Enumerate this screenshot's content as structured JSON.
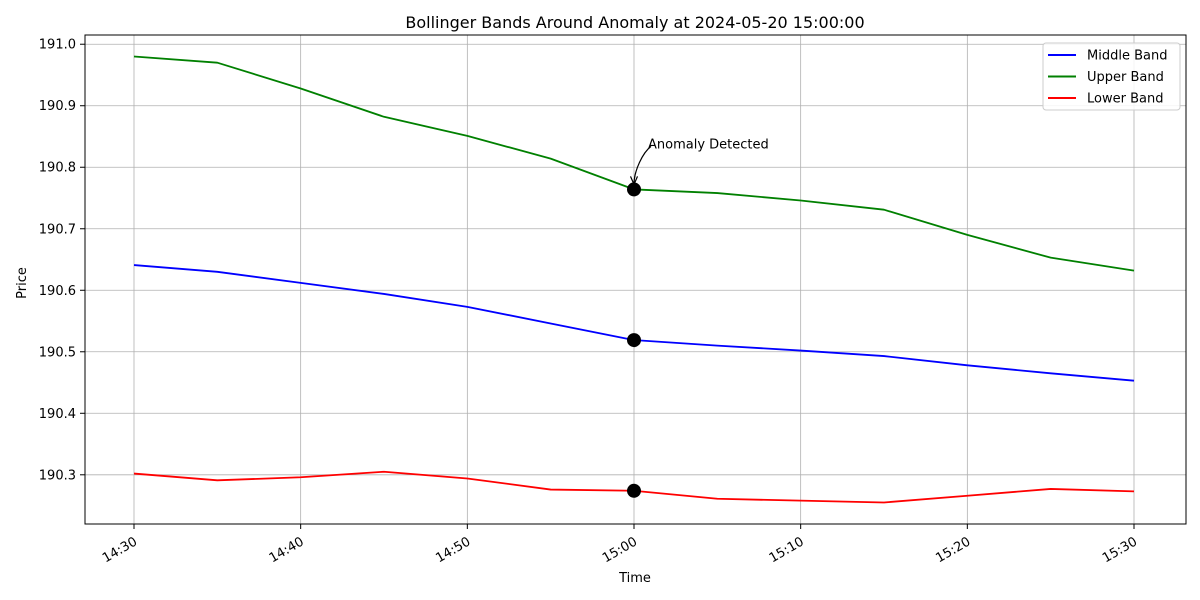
{
  "chart_data": {
    "type": "line",
    "title": "Bollinger Bands Around Anomaly at 2024-05-20 15:00:00",
    "xlabel": "Time",
    "ylabel": "Price",
    "x": [
      "14:30",
      "14:35",
      "14:40",
      "14:45",
      "14:50",
      "14:55",
      "15:00",
      "15:05",
      "15:10",
      "15:15",
      "15:20",
      "15:25",
      "15:30"
    ],
    "x_ticks": [
      "14:30",
      "14:40",
      "14:50",
      "15:00",
      "15:10",
      "15:20",
      "15:30"
    ],
    "y_ticks": [
      "190.3",
      "190.4",
      "190.5",
      "190.6",
      "190.7",
      "190.8",
      "190.9",
      "191.0"
    ],
    "ylim": [
      190.22,
      191.015
    ],
    "grid": true,
    "legend_position": "top-right",
    "series": [
      {
        "name": "Middle Band",
        "color": "#0000ff",
        "values": [
          190.641,
          190.63,
          190.612,
          190.594,
          190.573,
          190.546,
          190.519,
          190.51,
          190.502,
          190.493,
          190.478,
          190.465,
          190.453
        ]
      },
      {
        "name": "Upper Band",
        "color": "#008000",
        "values": [
          190.98,
          190.97,
          190.928,
          190.882,
          190.851,
          190.814,
          190.764,
          190.758,
          190.746,
          190.731,
          190.69,
          190.653,
          190.632
        ]
      },
      {
        "name": "Lower Band",
        "color": "#ff0000",
        "values": [
          190.302,
          190.291,
          190.296,
          190.305,
          190.294,
          190.276,
          190.274,
          190.261,
          190.258,
          190.255,
          190.266,
          190.277,
          190.273
        ]
      }
    ],
    "anomaly": {
      "x": "15:00",
      "points": [
        190.764,
        190.519,
        190.274
      ],
      "label": "Anomaly Detected",
      "marker_color": "#000000"
    }
  }
}
